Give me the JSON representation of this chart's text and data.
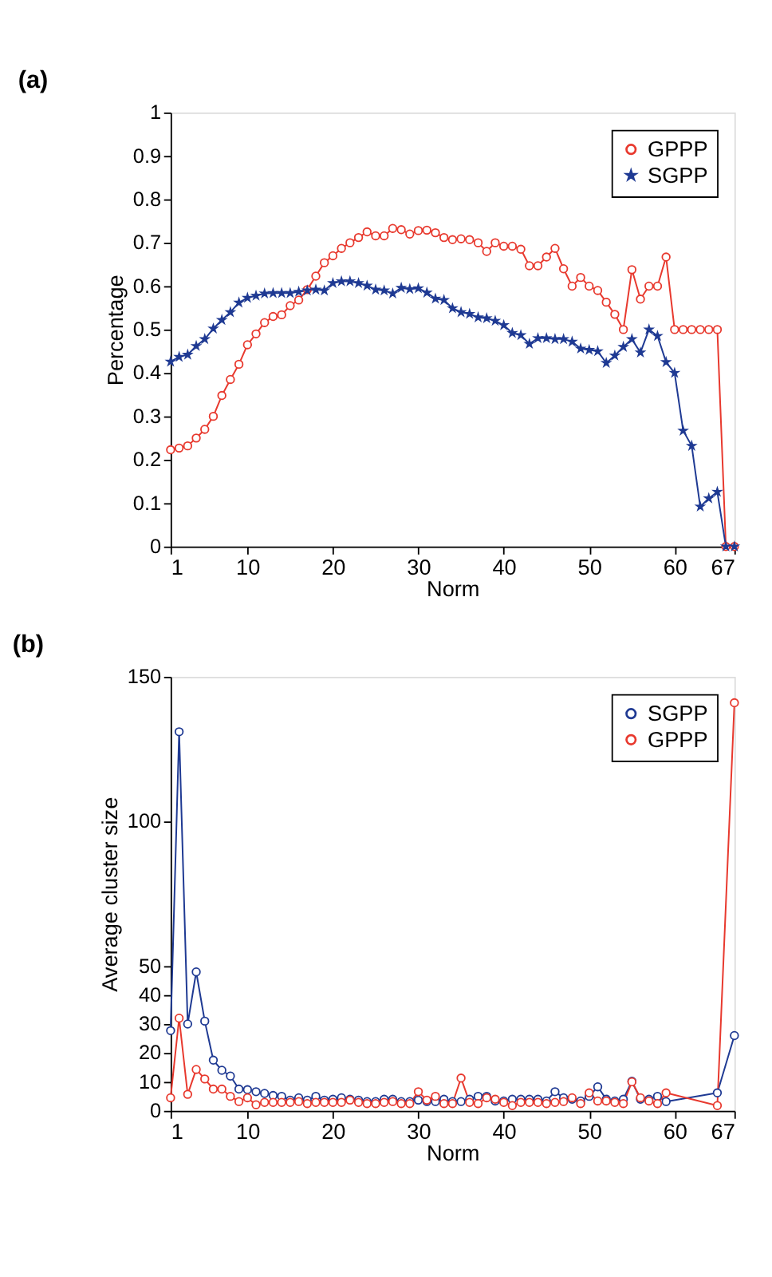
{
  "chart_data": [
    {
      "type": "line",
      "title": "(a)",
      "xlabel": "Norm",
      "ylabel": "Percentage",
      "x": [
        1,
        2,
        3,
        4,
        5,
        6,
        7,
        8,
        9,
        10,
        11,
        12,
        13,
        14,
        15,
        16,
        17,
        18,
        19,
        20,
        21,
        22,
        23,
        24,
        25,
        26,
        27,
        28,
        29,
        30,
        31,
        32,
        33,
        34,
        35,
        36,
        37,
        38,
        39,
        40,
        41,
        42,
        43,
        44,
        45,
        46,
        47,
        48,
        49,
        50,
        51,
        52,
        53,
        54,
        55,
        56,
        57,
        58,
        59,
        60,
        61,
        62,
        63,
        64,
        65,
        66,
        67
      ],
      "series": [
        {
          "name": "GPPP",
          "color": "#e8392e",
          "marker": "circle",
          "values": [
            0.223,
            0.227,
            0.232,
            0.25,
            0.27,
            0.3,
            0.348,
            0.385,
            0.42,
            0.465,
            0.49,
            0.516,
            0.53,
            0.534,
            0.555,
            0.568,
            0.592,
            0.623,
            0.654,
            0.67,
            0.687,
            0.7,
            0.712,
            0.725,
            0.716,
            0.716,
            0.733,
            0.73,
            0.72,
            0.728,
            0.729,
            0.723,
            0.712,
            0.707,
            0.709,
            0.707,
            0.7,
            0.68,
            0.7,
            0.692,
            0.692,
            0.685,
            0.647,
            0.647,
            0.667,
            0.687,
            0.64,
            0.6,
            0.62,
            0.6,
            0.59,
            0.563,
            0.535,
            0.5,
            0.638,
            0.57,
            0.6,
            0.6,
            0.667,
            0.5,
            0.5,
            0.5,
            0.5,
            0.5,
            0.5,
            0,
            0
          ]
        },
        {
          "name": "SGPP",
          "color": "#1f3a93",
          "marker": "star",
          "values": [
            0.426,
            0.437,
            0.442,
            0.462,
            0.478,
            0.502,
            0.522,
            0.54,
            0.562,
            0.573,
            0.578,
            0.583,
            0.584,
            0.584,
            0.584,
            0.587,
            0.59,
            0.592,
            0.59,
            0.607,
            0.611,
            0.611,
            0.607,
            0.601,
            0.592,
            0.59,
            0.583,
            0.596,
            0.593,
            0.595,
            0.585,
            0.571,
            0.568,
            0.549,
            0.54,
            0.536,
            0.528,
            0.526,
            0.52,
            0.51,
            0.492,
            0.487,
            0.467,
            0.48,
            0.48,
            0.478,
            0.478,
            0.472,
            0.456,
            0.453,
            0.45,
            0.423,
            0.44,
            0.46,
            0.478,
            0.447,
            0.5,
            0.485,
            0.425,
            0.4,
            0.267,
            0.232,
            0.092,
            0.111,
            0.126,
            0,
            0
          ]
        }
      ],
      "xlim": [
        1,
        67
      ],
      "xticks": [
        1,
        10,
        20,
        30,
        40,
        50,
        60,
        67
      ],
      "ylim": [
        0,
        1
      ],
      "yticks": [
        0,
        0.1,
        0.2,
        0.3,
        0.4,
        0.5,
        0.6,
        0.7,
        0.8,
        0.9,
        1
      ],
      "legend": "top right",
      "grid": false,
      "line_style": "solid"
    },
    {
      "type": "line",
      "title": "(b)",
      "xlabel": "Norm",
      "ylabel": "Average cluster size",
      "series": [
        {
          "name": "SGPP",
          "color": "#1f3a93",
          "marker": "circle",
          "x": [
            1,
            2,
            3,
            4,
            5,
            6,
            7,
            8,
            9,
            10,
            11,
            12,
            13,
            14,
            15,
            16,
            17,
            18,
            19,
            20,
            21,
            22,
            23,
            24,
            25,
            26,
            27,
            28,
            29,
            30,
            31,
            32,
            33,
            34,
            35,
            36,
            37,
            38,
            39,
            40,
            41,
            42,
            43,
            44,
            45,
            46,
            47,
            48,
            49,
            50,
            51,
            52,
            53,
            54,
            55,
            56,
            57,
            58,
            59,
            65,
            67
          ],
          "values": [
            27.7,
            131,
            30,
            48,
            31,
            17.5,
            14,
            12,
            7.5,
            7.3,
            6.6,
            6,
            5.3,
            5,
            3.7,
            4.5,
            3.7,
            5,
            3.7,
            4,
            4.5,
            4,
            3.7,
            3.2,
            3.2,
            4,
            4,
            3.2,
            3.2,
            3.7,
            3.2,
            3.2,
            4,
            3.2,
            3.2,
            4,
            5,
            5,
            3.4,
            3.4,
            4,
            4,
            4,
            4,
            3.4,
            6.6,
            4.5,
            4,
            3.4,
            5,
            8.3,
            4,
            3.4,
            4,
            10.2,
            4,
            4,
            5,
            3.2,
            6.2,
            26
          ]
        },
        {
          "name": "GPPP",
          "color": "#e8392e",
          "marker": "circle",
          "x": [
            1,
            2,
            3,
            4,
            5,
            6,
            7,
            8,
            9,
            10,
            11,
            12,
            13,
            14,
            15,
            16,
            17,
            18,
            19,
            20,
            21,
            22,
            23,
            24,
            25,
            26,
            27,
            28,
            29,
            30,
            31,
            32,
            33,
            34,
            35,
            36,
            37,
            38,
            39,
            40,
            41,
            42,
            43,
            44,
            45,
            46,
            47,
            48,
            49,
            50,
            51,
            52,
            53,
            54,
            55,
            56,
            57,
            58,
            59,
            65,
            67
          ],
          "values": [
            4.5,
            32,
            5.7,
            14.3,
            11,
            7.5,
            7.5,
            5,
            3.2,
            4.5,
            2.1,
            2.9,
            2.9,
            2.9,
            2.9,
            3.2,
            2.5,
            2.9,
            2.9,
            2.9,
            2.9,
            3.7,
            2.9,
            2.5,
            2.5,
            2.9,
            3.2,
            2.5,
            2.5,
            6.6,
            3.7,
            5,
            2.5,
            2.5,
            11.3,
            2.9,
            2.5,
            4.5,
            4,
            2.9,
            1.8,
            2.9,
            2.9,
            2.9,
            2.5,
            2.9,
            3.2,
            4.5,
            2.5,
            6.2,
            3.4,
            3.4,
            2.9,
            2.5,
            10,
            4.5,
            3.4,
            2.5,
            6.2,
            1.8,
            141
          ]
        }
      ],
      "xlim": [
        1,
        67
      ],
      "xticks": [
        1,
        10,
        20,
        30,
        40,
        50,
        60,
        67
      ],
      "ylim": [
        0,
        150
      ],
      "yticks": [
        0,
        10,
        20,
        30,
        40,
        50,
        100,
        150
      ],
      "legend": "top right",
      "grid": false,
      "line_style": "solid"
    }
  ]
}
